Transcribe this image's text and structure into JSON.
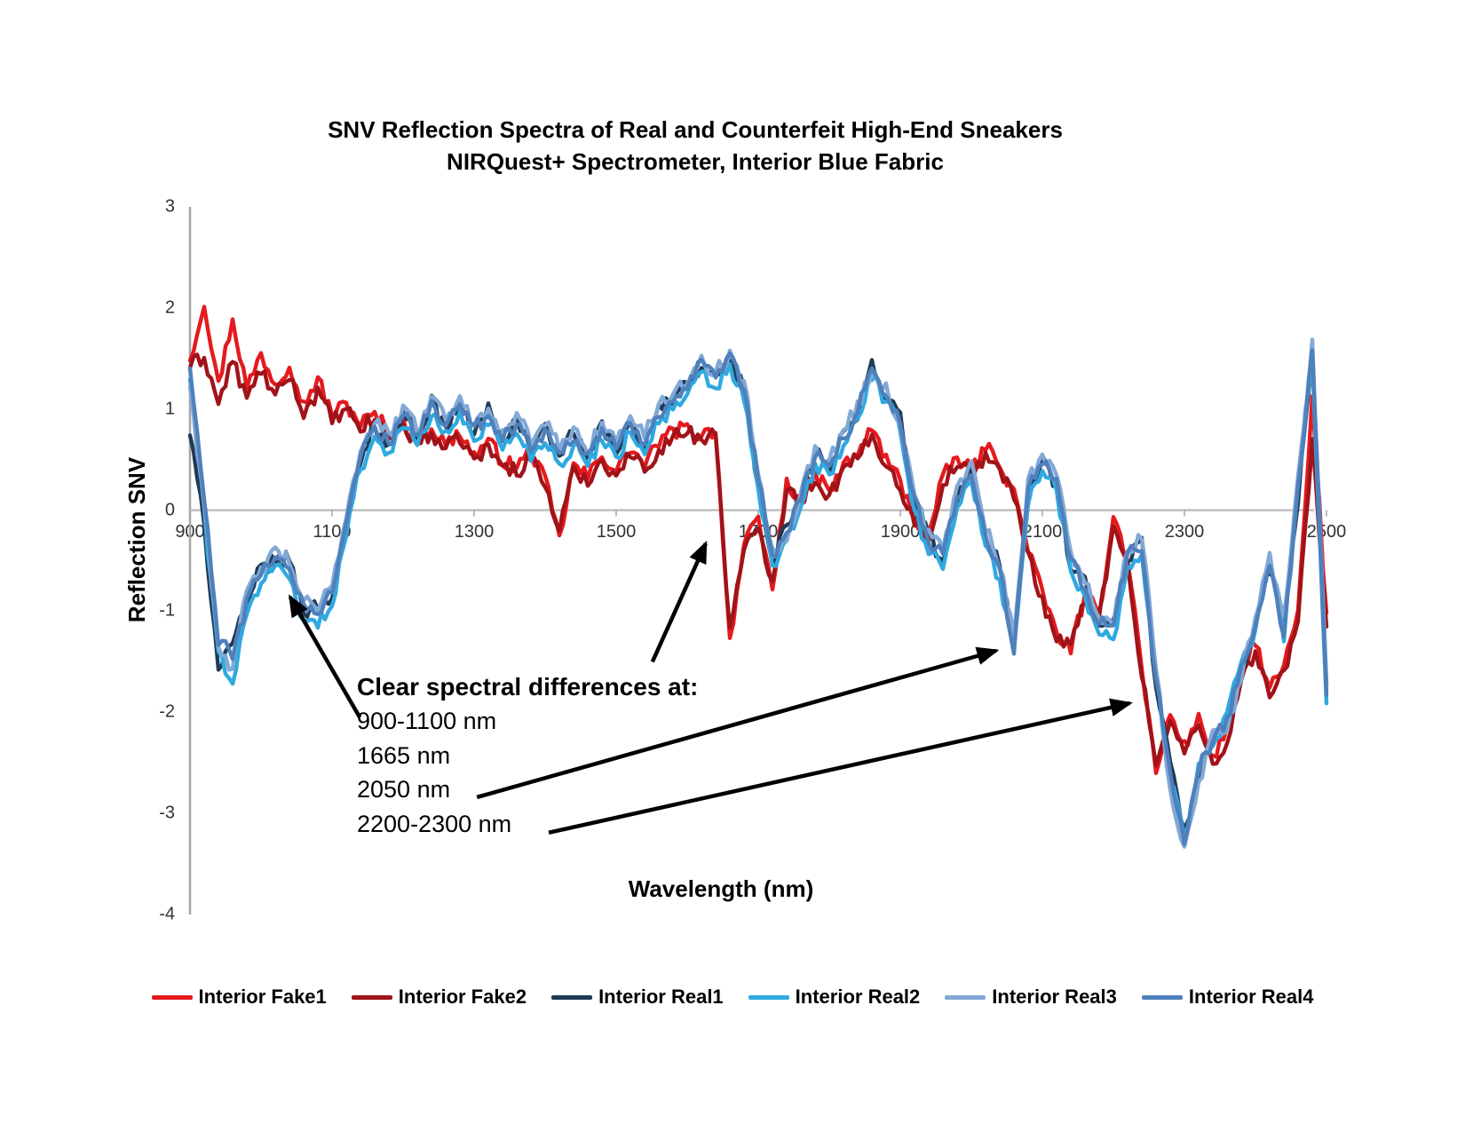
{
  "chart_data": {
    "type": "line",
    "title": "SNV Reflection Spectra of Real and Counterfeit High-End Sneakers",
    "subtitle": "NIRQuest+ Spectrometer, Interior Blue Fabric",
    "xlabel": "Wavelength (nm)",
    "ylabel": "Reflection SNV",
    "xlim": [
      900,
      2500
    ],
    "ylim": [
      -4,
      3
    ],
    "x_ticks": [
      900,
      1100,
      1300,
      1500,
      1700,
      1900,
      2100,
      2300,
      2500
    ],
    "y_ticks": [
      3,
      2,
      1,
      0,
      -1,
      -2,
      -3,
      -4
    ],
    "x_start": 900,
    "x_step": 20,
    "grid": "zero-line-only",
    "legend_position": "bottom",
    "noise_amplitude": 0.08,
    "axis_color": "#a6a6a6",
    "zero_line_color": "#bfbfbf",
    "series": [
      {
        "name": "Interior Fake1",
        "color": "#e41a1f",
        "values": [
          1.5,
          2.05,
          1.25,
          1.9,
          1.2,
          1.55,
          1.25,
          1.45,
          1.05,
          1.3,
          0.95,
          1.05,
          0.85,
          0.95,
          0.78,
          0.88,
          0.7,
          0.82,
          0.64,
          0.76,
          0.55,
          0.68,
          0.48,
          0.42,
          0.58,
          0.3,
          -0.28,
          0.45,
          0.32,
          0.55,
          0.38,
          0.6,
          0.44,
          0.66,
          0.78,
          0.82,
          0.74,
          0.8,
          -1.28,
          -0.35,
          -0.1,
          -0.78,
          0.28,
          0.12,
          0.36,
          0.18,
          0.44,
          0.56,
          0.8,
          0.52,
          0.28,
          -0.08,
          -0.24,
          0.32,
          0.52,
          0.38,
          0.62,
          0.46,
          0.18,
          -0.38,
          -0.82,
          -1.22,
          -1.38,
          -0.85,
          -1.02,
          -0.05,
          -0.48,
          -1.55,
          -2.6,
          -2.02,
          -2.32,
          -2.05,
          -2.45,
          -2.18,
          -1.62,
          -1.3,
          -1.78,
          -1.55,
          -1.02,
          1.1,
          -1.05
        ]
      },
      {
        "name": "Interior Fake2",
        "color": "#a01318",
        "values": [
          1.42,
          1.52,
          1.05,
          1.48,
          1.1,
          1.38,
          1.12,
          1.32,
          0.95,
          1.18,
          0.88,
          0.98,
          0.8,
          0.9,
          0.72,
          0.84,
          0.66,
          0.76,
          0.6,
          0.7,
          0.5,
          0.62,
          0.44,
          0.38,
          0.52,
          0.24,
          -0.2,
          0.4,
          0.28,
          0.5,
          0.34,
          0.55,
          0.4,
          0.6,
          0.72,
          0.78,
          0.7,
          0.76,
          -1.18,
          -0.42,
          -0.16,
          -0.7,
          0.22,
          0.08,
          0.3,
          0.14,
          0.4,
          0.5,
          0.74,
          0.46,
          0.22,
          -0.12,
          -0.28,
          0.26,
          0.46,
          0.34,
          0.56,
          0.4,
          0.12,
          -0.44,
          -0.88,
          -1.28,
          -1.3,
          -0.92,
          -1.08,
          -0.12,
          -0.55,
          -1.62,
          -2.5,
          -2.1,
          -2.4,
          -2.12,
          -2.52,
          -2.28,
          -1.7,
          -1.38,
          -1.85,
          -1.62,
          -1.1,
          0.72,
          -1.15
        ]
      },
      {
        "name": "Interior Real1",
        "color": "#1f3b55",
        "values": [
          0.75,
          -0.15,
          -1.55,
          -1.3,
          -0.98,
          -0.55,
          -0.52,
          -0.48,
          -1.0,
          -0.95,
          -0.85,
          -0.18,
          0.48,
          0.85,
          0.62,
          0.98,
          0.7,
          1.1,
          0.8,
          1.08,
          0.75,
          1.02,
          0.65,
          0.92,
          0.56,
          0.84,
          0.5,
          0.78,
          0.5,
          0.86,
          0.55,
          0.92,
          0.62,
          1.02,
          1.05,
          1.26,
          1.4,
          1.34,
          1.46,
          1.24,
          0.22,
          -0.52,
          -0.15,
          0.05,
          0.62,
          0.38,
          0.76,
          0.94,
          1.46,
          1.08,
          0.95,
          0.02,
          -0.25,
          -0.52,
          0.08,
          0.42,
          -0.32,
          -0.52,
          -1.32,
          0.12,
          0.52,
          0.22,
          -0.58,
          -0.7,
          -1.18,
          -1.1,
          -0.52,
          -0.3,
          -1.78,
          -2.52,
          -3.18,
          -2.66,
          -2.18,
          -2.15,
          -1.62,
          -1.08,
          -0.6,
          -1.12,
          0.1,
          1.5,
          -1.7
        ]
      },
      {
        "name": "Interior Real2",
        "color": "#2fa9e0",
        "values": [
          1.3,
          0.0,
          -1.42,
          -1.7,
          -1.05,
          -0.7,
          -0.55,
          -0.66,
          -1.08,
          -1.15,
          -0.92,
          -0.22,
          0.42,
          0.72,
          0.58,
          0.84,
          0.64,
          0.95,
          0.75,
          0.94,
          0.7,
          0.88,
          0.6,
          0.78,
          0.52,
          0.7,
          0.46,
          0.64,
          0.45,
          0.72,
          0.52,
          0.78,
          0.58,
          0.88,
          1.0,
          1.12,
          1.35,
          1.2,
          1.42,
          1.1,
          0.18,
          -0.55,
          -0.32,
          0.02,
          0.45,
          0.35,
          0.62,
          0.92,
          1.32,
          1.06,
          0.8,
          0.0,
          -0.42,
          -0.55,
          0.05,
          0.28,
          -0.35,
          -0.7,
          -1.35,
          0.08,
          0.38,
          0.2,
          -0.6,
          -0.85,
          -1.2,
          -1.28,
          -0.55,
          -0.45,
          -1.62,
          -2.68,
          -3.22,
          -2.5,
          -2.32,
          -2.0,
          -1.48,
          -1.22,
          -0.45,
          -1.3,
          0.28,
          1.55,
          -1.92
        ]
      },
      {
        "name": "Interior Real3",
        "color": "#82a9d6",
        "values": [
          1.22,
          0.05,
          -1.35,
          -1.55,
          -0.82,
          -0.58,
          -0.4,
          -0.52,
          -0.9,
          -1.0,
          -0.72,
          -0.05,
          0.6,
          0.88,
          0.74,
          1.0,
          0.8,
          1.12,
          0.92,
          1.1,
          0.86,
          1.04,
          0.76,
          0.94,
          0.68,
          0.85,
          0.62,
          0.8,
          0.6,
          0.88,
          0.66,
          0.94,
          0.74,
          1.04,
          1.16,
          1.28,
          1.5,
          1.35,
          1.55,
          1.28,
          0.38,
          -0.38,
          -0.28,
          0.18,
          0.6,
          0.5,
          0.78,
          1.06,
          1.35,
          1.22,
          0.82,
          0.18,
          -0.22,
          -0.38,
          0.22,
          0.45,
          -0.18,
          -0.55,
          -1.28,
          0.28,
          0.55,
          0.38,
          -0.42,
          -0.68,
          -1.05,
          -1.12,
          -0.38,
          -0.28,
          -1.55,
          -2.75,
          -3.35,
          -2.72,
          -2.15,
          -2.2,
          -1.68,
          -1.05,
          -0.42,
          -1.08,
          0.35,
          1.68,
          -1.75
        ]
      },
      {
        "name": "Interior Real4",
        "color": "#4e80bc",
        "values": [
          1.4,
          0.1,
          -1.3,
          -1.45,
          -0.9,
          -0.62,
          -0.45,
          -0.58,
          -0.95,
          -1.05,
          -0.78,
          -0.1,
          0.55,
          0.8,
          0.68,
          0.92,
          0.74,
          1.05,
          0.85,
          1.02,
          0.8,
          0.96,
          0.7,
          0.86,
          0.62,
          0.78,
          0.56,
          0.72,
          0.55,
          0.8,
          0.6,
          0.86,
          0.68,
          0.96,
          1.1,
          1.2,
          1.45,
          1.28,
          1.52,
          1.18,
          0.3,
          -0.45,
          -0.22,
          0.12,
          0.55,
          0.44,
          0.7,
          1.0,
          1.4,
          1.15,
          0.88,
          0.1,
          -0.32,
          -0.46,
          0.15,
          0.36,
          -0.25,
          -0.6,
          -1.4,
          0.2,
          0.46,
          0.3,
          -0.5,
          -0.78,
          -1.12,
          -1.18,
          -0.45,
          -0.38,
          -1.7,
          -2.6,
          -3.28,
          -2.58,
          -2.25,
          -2.08,
          -1.55,
          -1.15,
          -0.52,
          -1.22,
          0.2,
          1.62,
          -1.85
        ]
      }
    ],
    "annotations": {
      "header": "Clear spectral differences at:",
      "items": [
        "900-1100 nm",
        "1665 nm",
        "2050 nm",
        "2200-2300 nm"
      ],
      "arrow_color": "#000000",
      "arrows": [
        {
          "from": [
            1139,
            -2.05
          ],
          "to": [
            1041,
            -0.86
          ]
        },
        {
          "from": [
            1551,
            -1.5
          ],
          "to": [
            1626,
            -0.33
          ]
        },
        {
          "from": [
            1304,
            -2.84
          ],
          "to": [
            2035,
            -1.39
          ]
        },
        {
          "from": [
            1405,
            -3.19
          ],
          "to": [
            2223,
            -1.91
          ]
        }
      ]
    }
  }
}
